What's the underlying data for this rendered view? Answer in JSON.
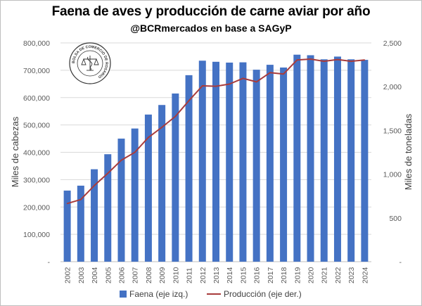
{
  "header": {
    "title": "Faena de aves y producción de carne aviar por año",
    "subtitle": "@BCRmercados en base a SAGyP"
  },
  "logo": {
    "text": "BOLSA DE COMERCIO DE ROSARIO"
  },
  "colors": {
    "bars": "#4472c4",
    "line": "#a83c3c",
    "grid": "#d9d9d9"
  },
  "chart_data": {
    "type": "bar+line",
    "title": "Faena de aves y producción de carne aviar por año",
    "categories": [
      "2002",
      "2003",
      "2004",
      "2005",
      "2006",
      "2007",
      "2008",
      "2009",
      "2010",
      "2011",
      "2012",
      "2013",
      "2014",
      "2015",
      "2016",
      "2017",
      "2018",
      "2019",
      "2020",
      "2021",
      "2022",
      "2023",
      "2024"
    ],
    "series": [
      {
        "name": "Faena (eje izq.)",
        "type": "bar",
        "axis": "left",
        "values": [
          260000,
          278000,
          338000,
          393000,
          450000,
          487000,
          538000,
          573000,
          615000,
          682000,
          735000,
          731000,
          728000,
          729000,
          702000,
          720000,
          710000,
          757000,
          755000,
          740000,
          750000,
          740000,
          738000
        ]
      },
      {
        "name": "Producción (eje der.)",
        "type": "line",
        "axis": "right",
        "values": [
          665,
          710,
          870,
          1010,
          1160,
          1250,
          1420,
          1535,
          1660,
          1840,
          2010,
          2005,
          2030,
          2095,
          2055,
          2160,
          2145,
          2305,
          2315,
          2290,
          2310,
          2290,
          2305
        ]
      }
    ],
    "left_axis": {
      "label": "Miles de cabezas",
      "ylim": [
        0,
        800000
      ],
      "ticks": [
        0,
        100000,
        200000,
        300000,
        400000,
        500000,
        600000,
        700000,
        800000
      ],
      "tick_labels": [
        "-",
        "100,000",
        "200,000",
        "300,000",
        "400,000",
        "500,000",
        "600,000",
        "700,000",
        "800,000"
      ]
    },
    "right_axis": {
      "label": "Miles de toneladas",
      "ylim": [
        0,
        2500
      ],
      "ticks": [
        0,
        500,
        1000,
        1500,
        2000,
        2500
      ],
      "tick_labels": [
        "-",
        "500",
        "1,000",
        "1,500",
        "2,000",
        "2,500"
      ]
    },
    "grid": true,
    "legend_position": "bottom"
  }
}
